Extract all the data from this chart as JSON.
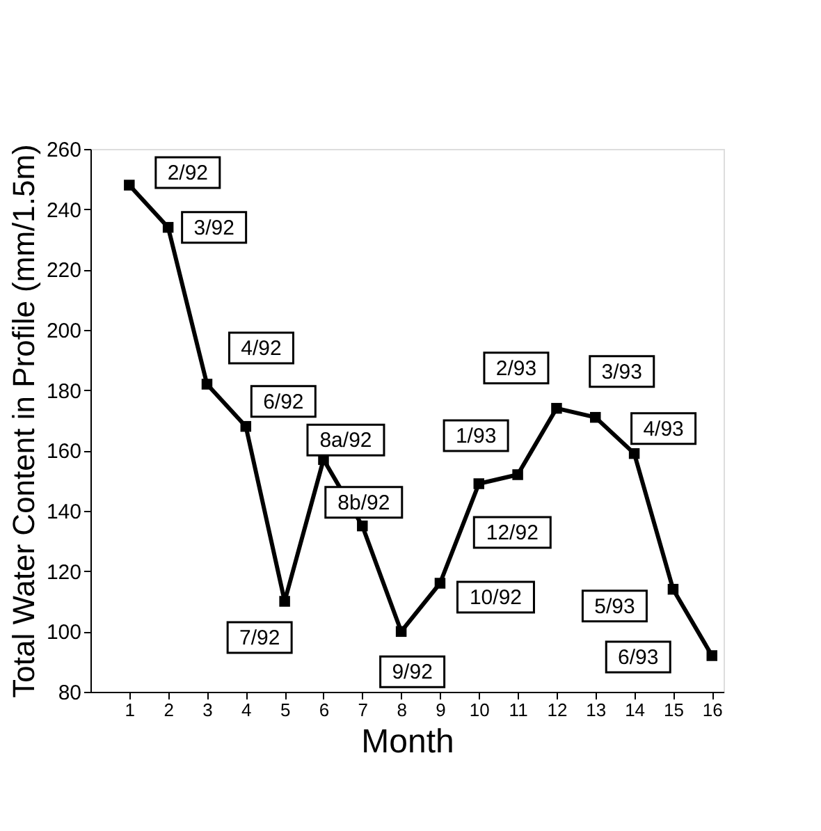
{
  "chart_data": {
    "type": "line",
    "xlabel": "Month",
    "ylabel": "Total Water Content in Profile (mm/1.5m)",
    "x": [
      1,
      2,
      3,
      4,
      5,
      6,
      7,
      8,
      9,
      10,
      11,
      12,
      13,
      14,
      15,
      16
    ],
    "series": [
      {
        "color": "#000000",
        "values": [
          248,
          234,
          182,
          168,
          110,
          157,
          135,
          100,
          116,
          149,
          152,
          174,
          171,
          159,
          114,
          92
        ]
      }
    ],
    "xlim": [
      0,
      16.3
    ],
    "xticks": [
      1,
      2,
      3,
      4,
      5,
      6,
      7,
      8,
      9,
      10,
      11,
      12,
      13,
      14,
      15,
      16
    ],
    "ylim": [
      80,
      260
    ],
    "yticks": [
      80,
      100,
      120,
      140,
      160,
      180,
      200,
      220,
      240,
      260
    ],
    "marker": "square",
    "line_style": "solid",
    "grid": false,
    "annotations": [
      {
        "text": "2/92",
        "x": 1,
        "y": 248
      },
      {
        "text": "3/92",
        "x": 2,
        "y": 234
      },
      {
        "text": "4/92",
        "x": 3,
        "y": 182
      },
      {
        "text": "6/92",
        "x": 4,
        "y": 168
      },
      {
        "text": "7/92",
        "x": 5,
        "y": 110
      },
      {
        "text": "8a/92",
        "x": 6,
        "y": 157
      },
      {
        "text": "8b/92",
        "x": 7,
        "y": 135
      },
      {
        "text": "9/92",
        "x": 8,
        "y": 100
      },
      {
        "text": "10/92",
        "x": 9,
        "y": 116
      },
      {
        "text": "12/92",
        "x": 10,
        "y": 149
      },
      {
        "text": "1/93",
        "x": 11,
        "y": 152
      },
      {
        "text": "2/93",
        "x": 12,
        "y": 174
      },
      {
        "text": "3/93",
        "x": 13,
        "y": 171
      },
      {
        "text": "4/93",
        "x": 14,
        "y": 159
      },
      {
        "text": "5/93",
        "x": 15,
        "y": 114
      },
      {
        "text": "6/93",
        "x": 16,
        "y": 92
      }
    ]
  }
}
